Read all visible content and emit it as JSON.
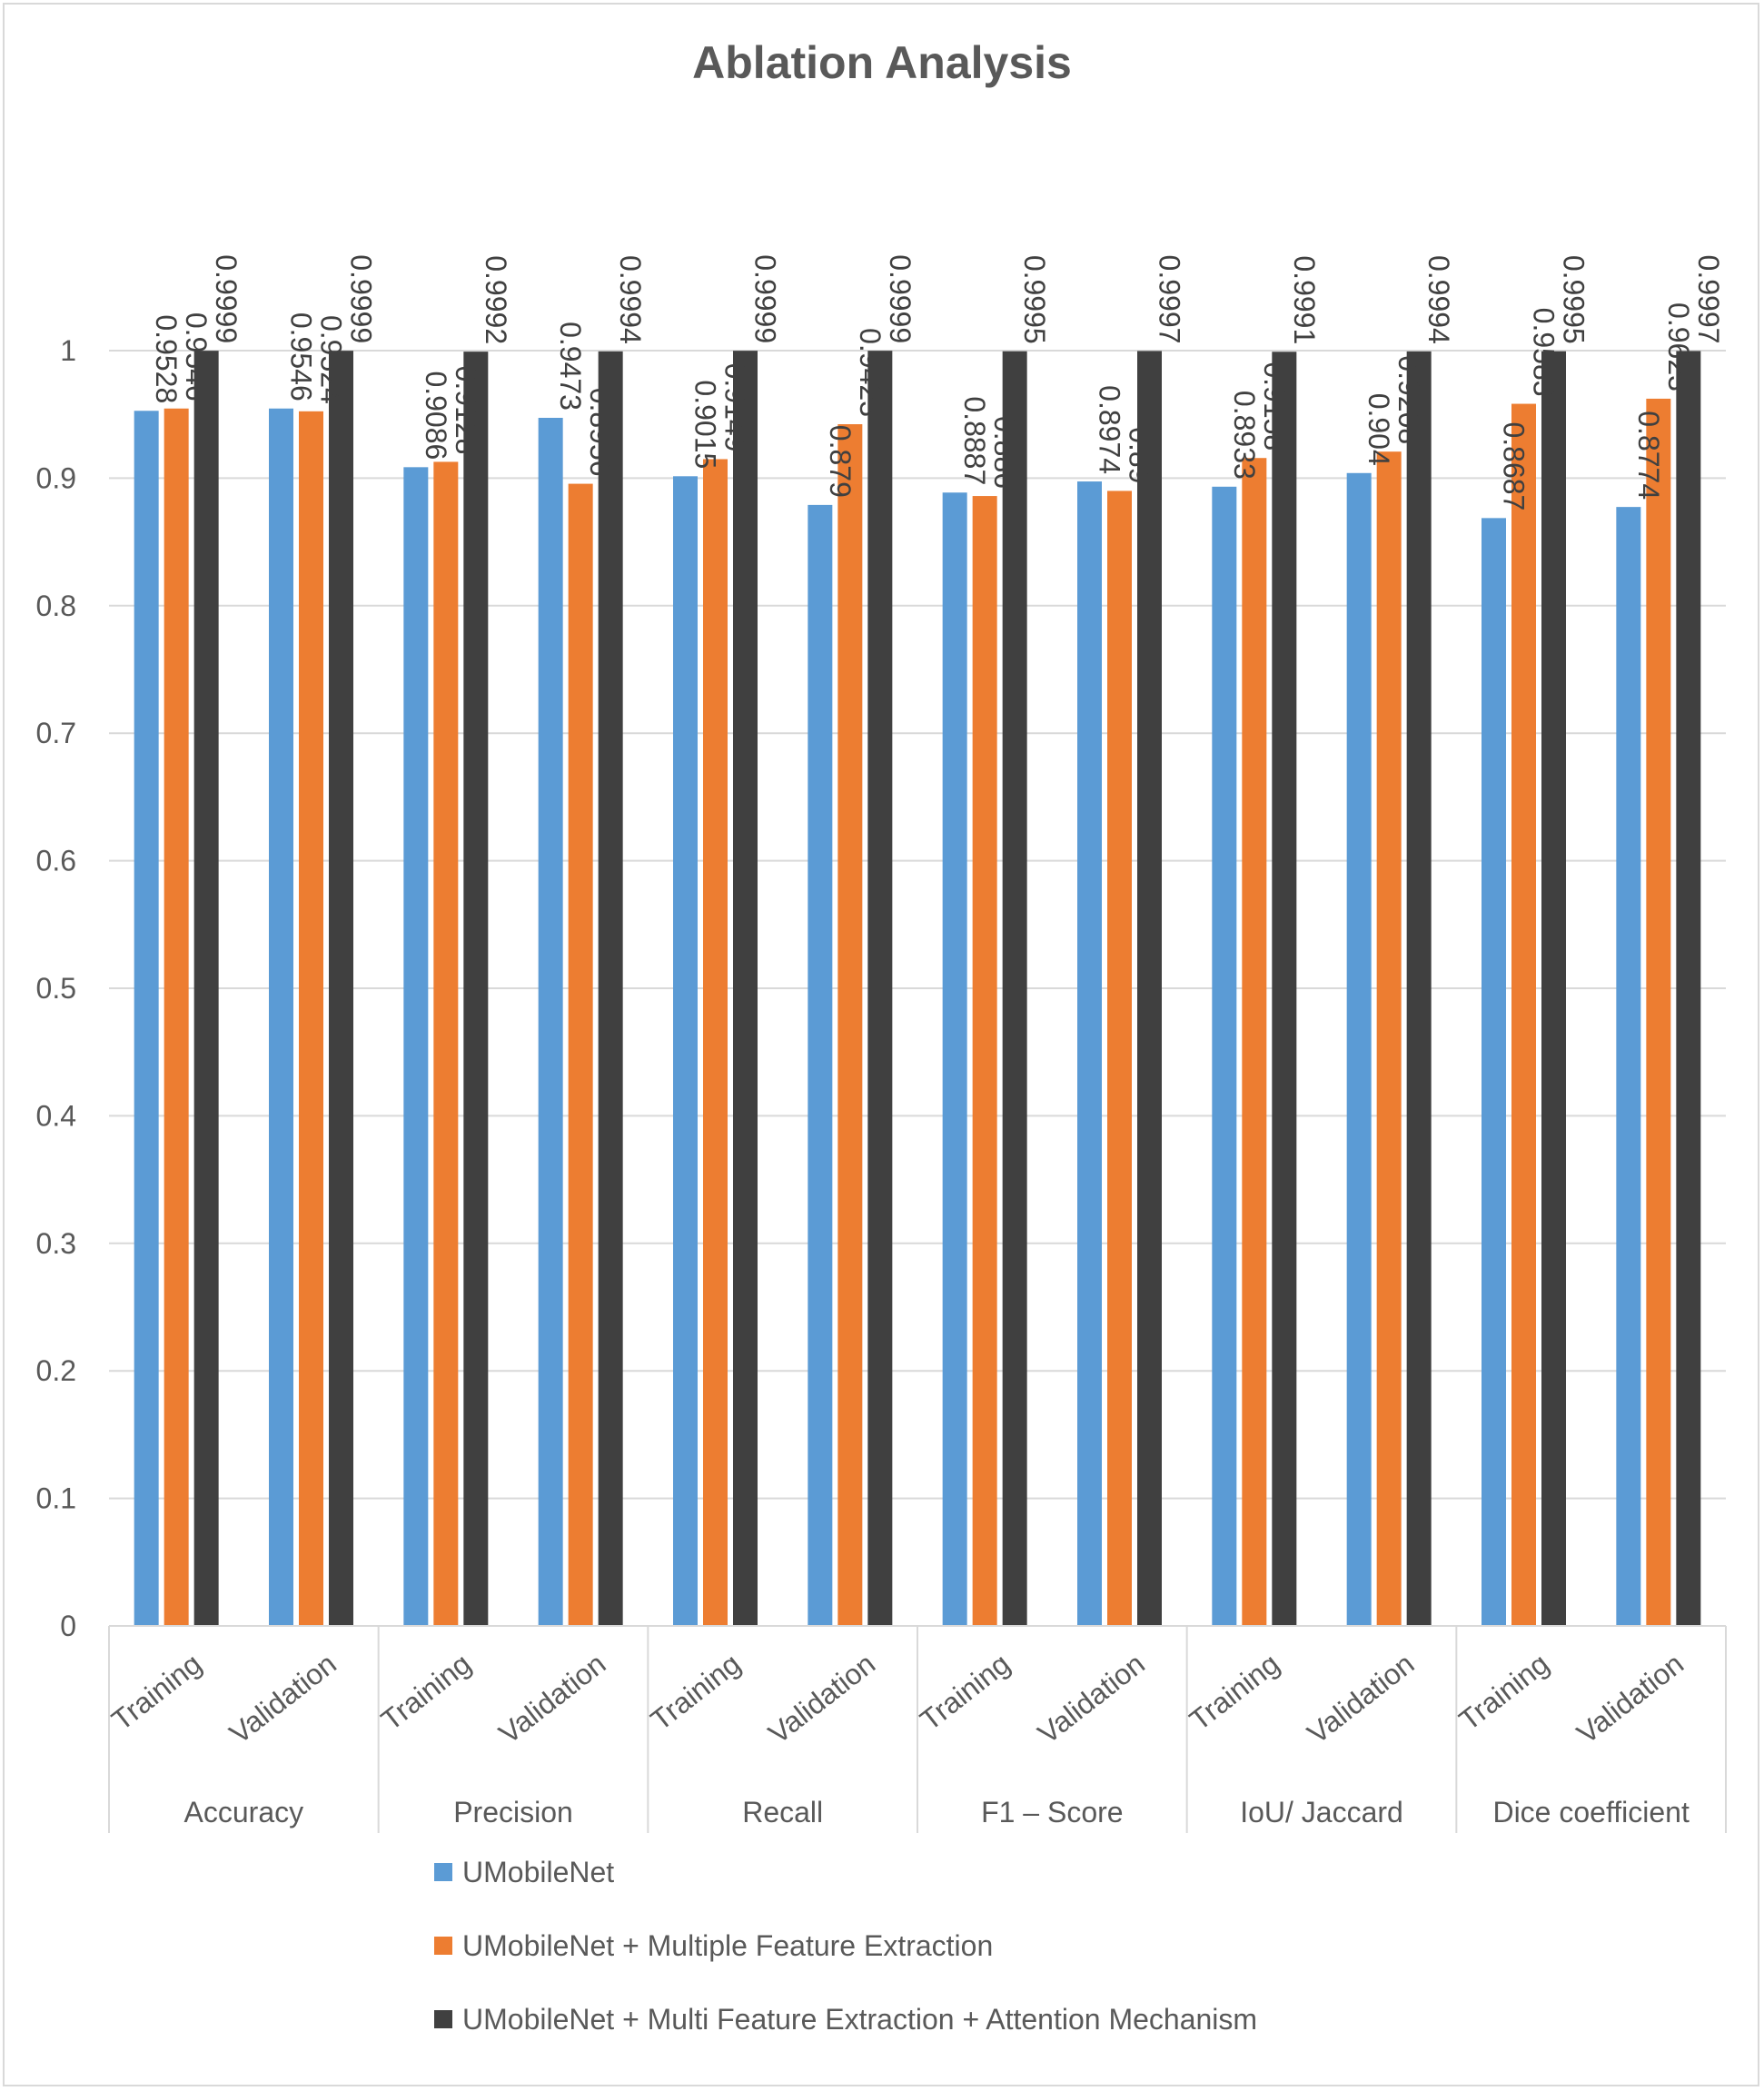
{
  "chart_data": {
    "type": "bar",
    "title": "Ablation Analysis",
    "xlabel": "",
    "ylabel": "",
    "ylim": [
      0,
      1
    ],
    "yticks": [
      "0",
      "0.1",
      "0.2",
      "0.3",
      "0.4",
      "0.5",
      "0.6",
      "0.7",
      "0.8",
      "0.9",
      "1"
    ],
    "groups": [
      "Accuracy",
      "Precision",
      "Recall",
      "F1 – Score",
      "IoU/ Jaccard",
      "Dice coefficient"
    ],
    "subcategories": [
      "Training",
      "Validation",
      "Training",
      "Validation",
      "Training",
      "Validation",
      "Training",
      "Validation",
      "Training",
      "Validation",
      "Training",
      "Validation"
    ],
    "series": [
      {
        "name": "UMobileNet",
        "color": "#5B9BD5",
        "values": [
          0.9528,
          0.9546,
          0.9086,
          0.9473,
          0.9015,
          0.879,
          0.8887,
          0.8974,
          0.8933,
          0.904,
          0.8687,
          0.8774
        ],
        "labels": [
          "0.9528",
          "0.9546",
          "0.9086",
          "0.9473",
          "0.9015",
          "0.879",
          "0.8887",
          "0.8974",
          "0.8933",
          "0.904",
          "0.8687",
          "0.8774"
        ]
      },
      {
        "name": "UMobileNet + Multiple Feature Extraction",
        "color": "#ED7D31",
        "values": [
          0.9546,
          0.9524,
          0.9128,
          0.8956,
          0.9149,
          0.9423,
          0.886,
          0.89,
          0.9158,
          0.9208,
          0.9583,
          0.9623
        ],
        "labels": [
          "0.9546",
          "0.9524",
          "0.9128",
          "0.8956",
          "0.9149",
          "0.9423",
          "0.886",
          "0.89",
          "0.9158",
          "0.9208",
          "0.9583",
          "0.9623"
        ]
      },
      {
        "name": "UMobileNet + Multi Feature Extraction + Attention Mechanism",
        "color": "#404040",
        "values": [
          0.9999,
          0.9999,
          0.9992,
          0.9994,
          0.9999,
          0.9999,
          0.9995,
          0.9997,
          0.9991,
          0.9994,
          0.9995,
          0.9997
        ],
        "labels": [
          "0.9999",
          "0.9999",
          "0.9992",
          "0.9994",
          "0.9999",
          "0.9999",
          "0.9995",
          "0.9997",
          "0.9991",
          "0.9994",
          "0.9995",
          "0.9997"
        ]
      }
    ],
    "gridlines": true,
    "legend_position": "bottom"
  }
}
